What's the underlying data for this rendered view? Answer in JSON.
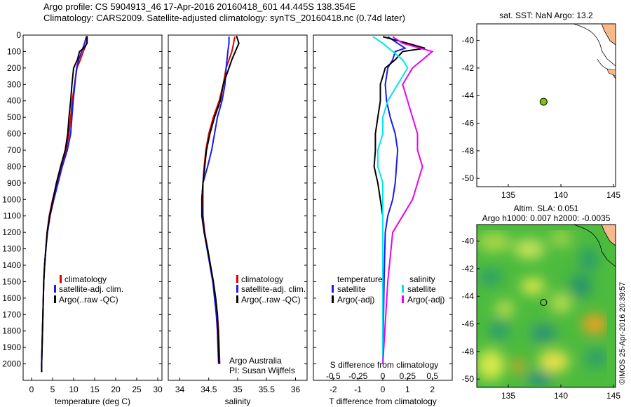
{
  "title": {
    "line1": "Argo profile: CS 5904913_46 17-Apr-2016 20160418_601 44.445S 138.354E",
    "line2": "Climatology: CARS2009. Satellite-adjusted climatology: synTS_20160418.nc (0.74d later)"
  },
  "colors": {
    "climatology": "#e00000",
    "satellite": "#1a1aee",
    "argo": "#000000",
    "salinity_satellite": "#00e5ee",
    "salinity_argo": "#ee00ee",
    "float_marker": "#7ec50b",
    "land": "#f6b98a"
  },
  "credit": {
    "group": "Argo Australia",
    "pi": "PI: Susan Wijffels",
    "stamp": "©IMOS 25-Apr-2016 20:39:57"
  },
  "chart_data": [
    {
      "type": "line",
      "panel": "temperature",
      "xlabel": "temperature (deg C)",
      "xlim": [
        -2,
        31
      ],
      "xticks": [
        0,
        5,
        10,
        15,
        20,
        25,
        30
      ],
      "ylim": [
        0,
        2100
      ],
      "yticks": [
        0,
        100,
        200,
        300,
        400,
        500,
        600,
        700,
        800,
        900,
        1000,
        1100,
        1200,
        1300,
        1400,
        1500,
        1600,
        1700,
        1800,
        1900,
        2000
      ],
      "legend_placement": "lower-left",
      "series": [
        {
          "name": "climatology",
          "y": [
            10,
            50,
            100,
            150,
            200,
            300,
            400,
            500,
            600,
            700,
            800,
            900,
            1000,
            1100,
            1200,
            1300,
            1400,
            1500,
            1600,
            1700,
            1800,
            1900,
            2000,
            2050
          ],
          "x": [
            13.2,
            13.1,
            12.3,
            11.6,
            10.8,
            10.2,
            9.7,
            9.3,
            8.9,
            8.2,
            7.0,
            6.0,
            5.0,
            4.2,
            3.7,
            3.4,
            3.1,
            2.9,
            2.8,
            2.7,
            2.6,
            2.5,
            2.4,
            2.4
          ]
        },
        {
          "name": "satellite-adj. clim.",
          "y": [
            10,
            50,
            100,
            150,
            200,
            300,
            400,
            500,
            600,
            700,
            800,
            900,
            1000,
            1100,
            1200,
            1300,
            1400,
            1500,
            1600,
            1700,
            1800,
            1900,
            2000,
            2050
          ],
          "x": [
            13.0,
            12.6,
            11.9,
            11.2,
            10.7,
            10.3,
            9.9,
            9.6,
            9.3,
            8.5,
            7.3,
            6.3,
            5.3,
            4.4,
            3.8,
            3.4,
            3.1,
            2.9,
            2.8,
            2.7,
            2.6,
            2.5,
            2.4,
            2.4
          ]
        },
        {
          "name": "Argo(..raw -QC)",
          "y": [
            5,
            50,
            80,
            100,
            150,
            200,
            300,
            400,
            500,
            600,
            700,
            800,
            900,
            1000,
            1100,
            1200,
            1300,
            1400,
            1500,
            1600,
            1700,
            1800,
            1900,
            2000,
            2050
          ],
          "x": [
            13.2,
            13.2,
            12.4,
            11.4,
            10.9,
            10.0,
            9.6,
            9.3,
            8.9,
            8.6,
            8.0,
            6.9,
            5.9,
            5.1,
            4.3,
            3.7,
            3.4,
            3.1,
            2.9,
            2.8,
            2.7,
            2.6,
            2.5,
            2.4,
            2.4
          ]
        }
      ]
    },
    {
      "type": "line",
      "panel": "salinity",
      "xlabel": "salinity",
      "xlim": [
        33.8,
        36.2
      ],
      "xticks": [
        34,
        34.5,
        35,
        35.5,
        36
      ],
      "ylim": [
        0,
        2100
      ],
      "legend_placement": "lower-right",
      "series": [
        {
          "name": "climatology",
          "y": [
            10,
            50,
            100,
            200,
            300,
            400,
            500,
            600,
            700,
            800,
            900,
            1000,
            1100,
            1200,
            1300,
            1400,
            1500,
            1600,
            1700,
            1800,
            1900,
            2000
          ],
          "x": [
            34.95,
            34.93,
            34.9,
            34.8,
            34.75,
            34.68,
            34.58,
            34.5,
            34.45,
            34.42,
            34.4,
            34.4,
            34.4,
            34.43,
            34.48,
            34.53,
            34.58,
            34.62,
            34.65,
            34.67,
            34.68,
            34.69
          ]
        },
        {
          "name": "satellite-adj. clim.",
          "y": [
            10,
            50,
            100,
            200,
            300,
            400,
            500,
            600,
            700,
            800,
            900,
            1000,
            1100,
            1200,
            1300,
            1400,
            1500,
            1600,
            1700,
            1800,
            1900,
            2000
          ],
          "x": [
            34.85,
            34.85,
            34.83,
            34.8,
            34.78,
            34.73,
            34.65,
            34.6,
            34.55,
            34.48,
            34.4,
            34.38,
            34.4,
            34.42,
            34.47,
            34.52,
            34.57,
            34.6,
            34.63,
            34.65,
            34.66,
            34.67
          ]
        },
        {
          "name": "Argo(..raw -QC)",
          "y": [
            5,
            50,
            100,
            150,
            200,
            300,
            400,
            500,
            600,
            700,
            800,
            900,
            1000,
            1100,
            1200,
            1300,
            1400,
            1500,
            1600,
            1700,
            1800,
            1900,
            2000
          ],
          "x": [
            34.98,
            35.02,
            34.96,
            34.9,
            34.85,
            34.75,
            34.7,
            34.6,
            34.52,
            34.46,
            34.43,
            34.4,
            34.38,
            34.38,
            34.42,
            34.48,
            34.53,
            34.58,
            34.62,
            34.65,
            34.66,
            34.67,
            34.68
          ]
        }
      ]
    },
    {
      "type": "line",
      "panel": "differences",
      "xlabel": "T difference from climatology",
      "xlabel_top": "S difference from climatology",
      "xlim": [
        -2.8,
        2.8
      ],
      "xticks": [
        -2,
        -1,
        0,
        1,
        2
      ],
      "xticks_top": [
        -0.5,
        -0.25,
        0,
        0.25,
        0.5
      ],
      "ylim": [
        0,
        2100
      ],
      "legend_groups": [
        "temperature",
        "salinity"
      ],
      "legend_placement": "lower-center",
      "series": [
        {
          "name": "satellite",
          "group": "temperature",
          "y": [
            10,
            50,
            80,
            100,
            150,
            200,
            300,
            400,
            500,
            600,
            700,
            800,
            900,
            1000,
            1100,
            1200,
            1500,
            2000
          ],
          "x": [
            0.2,
            0.6,
            0.9,
            0.5,
            0.4,
            0.2,
            0.1,
            0.15,
            0.3,
            0.5,
            0.6,
            0.55,
            0.5,
            0.4,
            0.2,
            0.1,
            0.05,
            0.0
          ]
        },
        {
          "name": "Argo(-adj)",
          "group": "temperature",
          "y": [
            10,
            50,
            80,
            100,
            150,
            200,
            300,
            400,
            500,
            600,
            700,
            800,
            900,
            1000,
            1100,
            1200,
            1500,
            2000
          ],
          "x": [
            0.0,
            1.0,
            1.7,
            0.8,
            0.5,
            0.1,
            -0.1,
            -0.1,
            -0.2,
            -0.3,
            -0.3,
            -0.35,
            -0.2,
            -0.1,
            0.0,
            0.0,
            0.0,
            0.0
          ]
        },
        {
          "name": "satellite",
          "group": "salinity",
          "y": [
            10,
            50,
            100,
            150,
            200,
            300,
            400,
            500,
            600,
            700,
            800,
            900,
            1000,
            1100,
            1200,
            1500,
            2000
          ],
          "x": [
            -0.1,
            0.0,
            0.1,
            0.2,
            0.25,
            0.15,
            0.05,
            0.0,
            0.0,
            -0.05,
            -0.05,
            0.0,
            0.0,
            0.0,
            0.0,
            0.0,
            0.0
          ]
        },
        {
          "name": "Argo(-adj)",
          "group": "salinity",
          "y": [
            10,
            50,
            100,
            150,
            200,
            300,
            400,
            500,
            600,
            700,
            800,
            900,
            1000,
            1100,
            1200,
            1500,
            2000
          ],
          "x": [
            0.1,
            0.2,
            0.5,
            0.4,
            0.3,
            0.2,
            0.25,
            0.3,
            0.35,
            0.35,
            0.4,
            0.35,
            0.3,
            0.2,
            0.1,
            0.05,
            0.0
          ]
        }
      ]
    },
    {
      "type": "scatter",
      "panel": "sst-map",
      "title": "sat. SST: NaN Argo: 13.2",
      "xlim": [
        132,
        145.2
      ],
      "ylim": [
        -50.6,
        -38.8
      ],
      "xticks": [
        135,
        140,
        145
      ],
      "yticks": [
        -40,
        -42,
        -44,
        -46,
        -48,
        -50
      ],
      "points": [
        {
          "lon": 138.354,
          "lat": -44.445
        }
      ]
    },
    {
      "type": "heatmap",
      "panel": "sla-map",
      "title_line1": "Altim. SLA: 0.051",
      "title_line2": "Argo h1000: 0.007 h2000: -0.0035",
      "xlim": [
        132,
        145.2
      ],
      "ylim": [
        -50.6,
        -38.8
      ],
      "xticks": [
        135,
        140,
        145
      ],
      "yticks": [
        -40,
        -42,
        -44,
        -46,
        -48,
        -50
      ],
      "points": [
        {
          "lon": 138.354,
          "lat": -44.445
        }
      ]
    }
  ]
}
